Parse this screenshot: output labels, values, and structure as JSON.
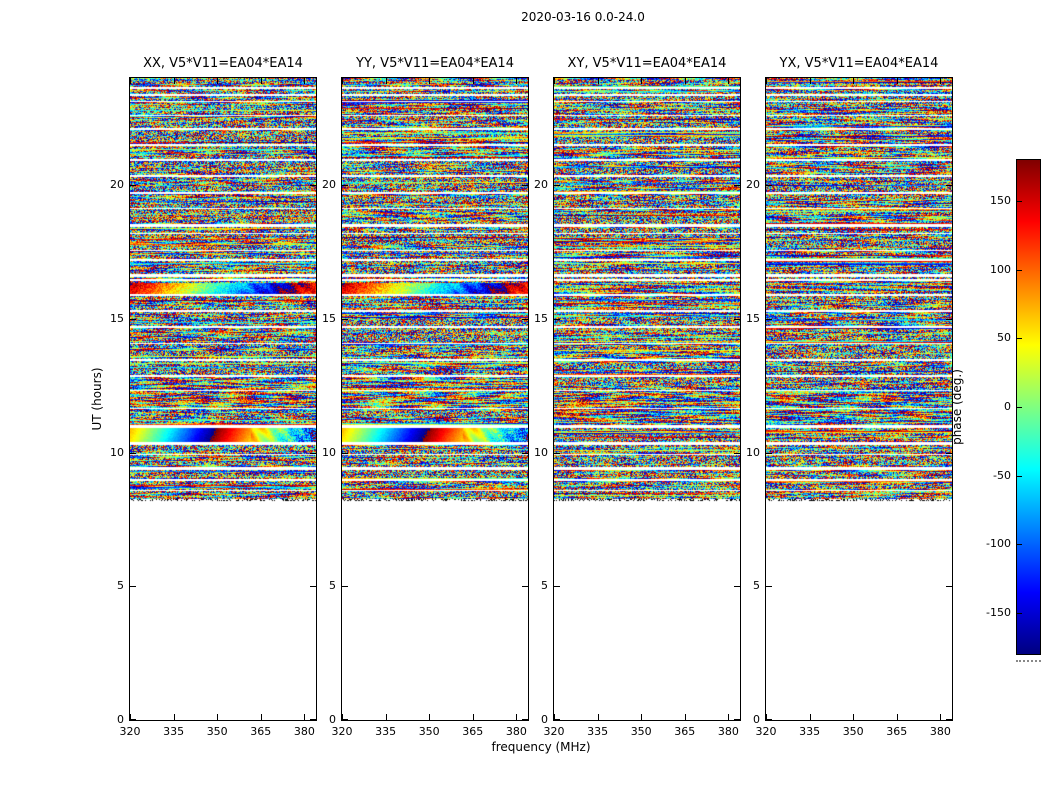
{
  "figure": {
    "title": "2020-03-16 0.0-24.0",
    "xlabel": "frequency (MHz)",
    "ylabel": "UT (hours)",
    "colorbar_label": "phase (deg.)"
  },
  "panels": [
    {
      "id": "XX",
      "title": "XX, V5*V11=EA04*EA14"
    },
    {
      "id": "YY",
      "title": "YY, V5*V11=EA04*EA14"
    },
    {
      "id": "XY",
      "title": "XY, V5*V11=EA04*EA14"
    },
    {
      "id": "YX",
      "title": "YX, V5*V11=EA04*EA14"
    }
  ],
  "chart_data": {
    "type": "heatmap",
    "title": "2020-03-16 0.0-24.0",
    "xlabel": "frequency (MHz)",
    "ylabel": "UT (hours)",
    "x_ticks": [
      320,
      335,
      350,
      365,
      380
    ],
    "x_range": [
      320,
      384
    ],
    "y_ticks": [
      0,
      5,
      10,
      15,
      20
    ],
    "y_range": [
      0,
      24
    ],
    "panels": [
      "XX, V5*V11=EA04*EA14",
      "YY, V5*V11=EA04*EA14",
      "XY, V5*V11=EA04*EA14",
      "YX, V5*V11=EA04*EA14"
    ],
    "value": "interferometric visibility phase (deg.), noise-like speckle between -180 and 180",
    "data_coverage": {
      "filled_ut_hours": [
        8.2,
        24.0
      ],
      "empty_ut_hours": [
        0.0,
        8.2
      ]
    },
    "colorbar": {
      "label": "phase (deg.)",
      "ticks": [
        150,
        100,
        50,
        0,
        -50,
        -100,
        -150
      ],
      "range": [
        -180,
        180
      ],
      "colormap": "jet"
    },
    "notable_features": [
      "smooth phase-wrap rainbow band at UT ~10.4-10.9 in XX and YY panels",
      "smooth gradient band at UT ~16.0-16.3 in XX and YY panels",
      "coherent wavy fringe stripes near UT 11-13 in all panels",
      "many thin horizontal blank (flagged) rows between scans",
      "no data below UT ~8.2 (white region)"
    ]
  }
}
